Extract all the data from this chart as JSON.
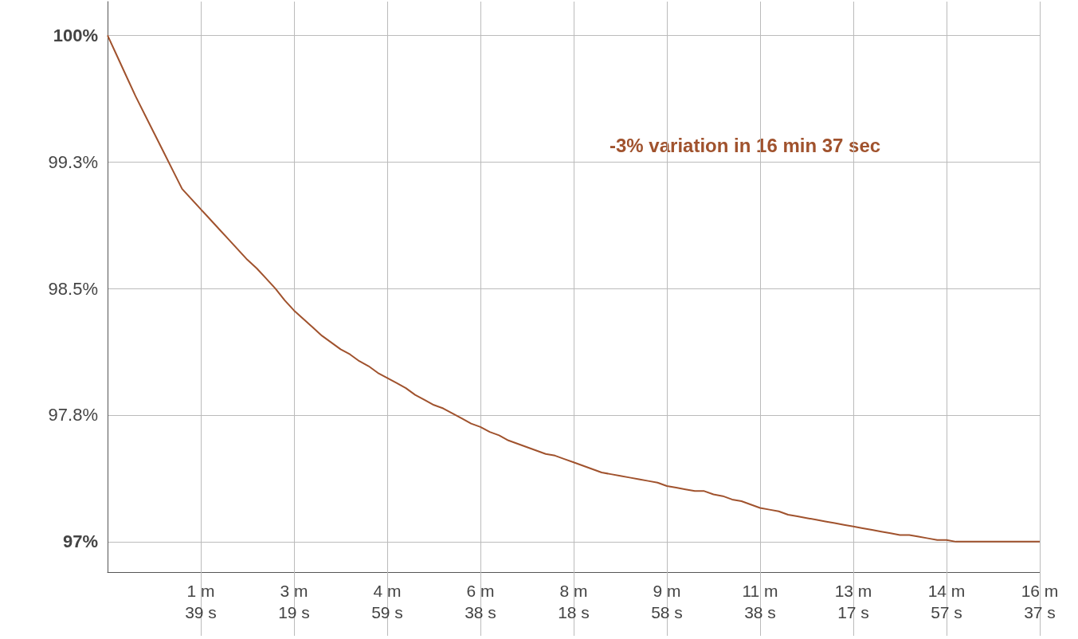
{
  "chart_data": {
    "type": "line",
    "color": "#a0522d",
    "categories": [
      null,
      null,
      null,
      null,
      null,
      null,
      null,
      null,
      null,
      null,
      "1 m\n39 s",
      null,
      null,
      null,
      null,
      null,
      null,
      null,
      null,
      null,
      "3 m\n19 s",
      null,
      null,
      null,
      null,
      null,
      null,
      null,
      null,
      null,
      "4 m\n59 s",
      null,
      null,
      null,
      null,
      null,
      null,
      null,
      null,
      null,
      "6 m\n38 s",
      null,
      null,
      null,
      null,
      null,
      null,
      null,
      null,
      null,
      "8 m\n18 s",
      null,
      null,
      null,
      null,
      null,
      null,
      null,
      null,
      null,
      "9 m\n58 s",
      null,
      null,
      null,
      null,
      null,
      null,
      null,
      null,
      null,
      "11 m\n38 s",
      null,
      null,
      null,
      null,
      null,
      null,
      null,
      null,
      null,
      "13 m\n17 s",
      null,
      null,
      null,
      null,
      null,
      null,
      null,
      null,
      null,
      "14 m\n57 s",
      null,
      null,
      null,
      null,
      null,
      null,
      null,
      null,
      null,
      "16 m\n37 s"
    ],
    "values": [
      100,
      99.88,
      99.76,
      99.64,
      99.53,
      99.42,
      99.31,
      99.2,
      99.09,
      99.03,
      98.97,
      98.91,
      98.85,
      98.79,
      98.73,
      98.67,
      98.62,
      98.56,
      98.5,
      98.43,
      98.37,
      98.32,
      98.27,
      98.22,
      98.18,
      98.14,
      98.11,
      98.07,
      98.04,
      98.0,
      97.97,
      97.94,
      97.91,
      97.87,
      97.84,
      97.81,
      97.79,
      97.76,
      97.73,
      97.7,
      97.68,
      97.65,
      97.63,
      97.6,
      97.58,
      97.56,
      97.54,
      97.52,
      97.51,
      97.49,
      97.47,
      97.45,
      97.43,
      97.41,
      97.4,
      97.39,
      97.38,
      97.37,
      97.36,
      97.35,
      97.33,
      97.32,
      97.31,
      97.3,
      97.3,
      97.28,
      97.27,
      97.25,
      97.24,
      97.22,
      97.2,
      97.19,
      97.18,
      97.16,
      97.15,
      97.14,
      97.13,
      97.12,
      97.11,
      97.1,
      97.09,
      97.08,
      97.07,
      97.06,
      97.05,
      97.04,
      97.04,
      97.03,
      97.02,
      97.01,
      97.01,
      97.0,
      97.0,
      97.0,
      97.0,
      97.0,
      97.0,
      97.0,
      97.0,
      97.0,
      97.0
    ],
    "ylim": [
      96.82,
      100.2
    ],
    "yticks": [
      {
        "value": 97,
        "label": "97%"
      },
      {
        "value": 97.75,
        "label": "97.8%"
      },
      {
        "value": 98.5,
        "label": "98.5%"
      },
      {
        "value": 99.25,
        "label": "99.3%"
      },
      {
        "value": 100,
        "label": "100%"
      }
    ],
    "annotations": [
      "-3% variation in 16 min 37 sec"
    ],
    "grid": true,
    "marker": "none",
    "line_style": "solid"
  }
}
